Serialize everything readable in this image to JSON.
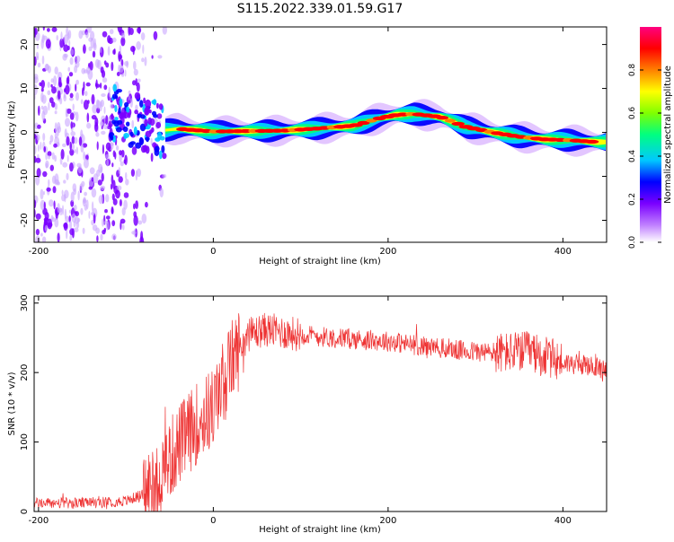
{
  "title": "S115.2022.339.01.59.G17",
  "chart_data": [
    {
      "type": "heatmap",
      "xlabel": "Height of straight line (km)",
      "ylabel": "Frequency (Hz)",
      "xlim": [
        -205,
        450
      ],
      "ylim": [
        -25,
        24
      ],
      "x_ticks": [
        -200,
        0,
        200,
        400
      ],
      "y_ticks": [
        -20,
        -10,
        0,
        10,
        20
      ],
      "colorbar": {
        "label": "Normalized spectral amplitude",
        "ticks": [
          0.0,
          0.2,
          0.4,
          0.6,
          0.8
        ],
        "range": [
          0,
          1
        ],
        "colormap": [
          "#ffffff",
          "#7a00ff",
          "#0000ff",
          "#00c8ff",
          "#00ff80",
          "#80ff00",
          "#ffff00",
          "#ff8000",
          "#ff0000",
          "#ff0080"
        ]
      },
      "ridge": {
        "x": [
          -55,
          -40,
          -20,
          0,
          40,
          80,
          120,
          160,
          190,
          210,
          230,
          260,
          290,
          320,
          350,
          380,
          410,
          440
        ],
        "frequency": [
          0.5,
          0.8,
          0.5,
          0.2,
          0.3,
          0.4,
          0.9,
          1.5,
          3.2,
          4.0,
          4.2,
          3.5,
          1.2,
          0.0,
          -1.0,
          -1.6,
          -1.8,
          -2.2
        ]
      },
      "noise_region": {
        "x_from": -205,
        "x_to": -55,
        "frequency_from": -25,
        "frequency_to": 24
      }
    },
    {
      "type": "line",
      "color": "#ee3333",
      "xlabel": "Height of straight line (km)",
      "ylabel": "SNR (10 * v/v)",
      "xlim": [
        -205,
        450
      ],
      "ylim": [
        0,
        310
      ],
      "x_ticks": [
        -200,
        0,
        200,
        400
      ],
      "y_ticks": [
        0,
        100,
        200,
        300
      ],
      "trend": {
        "x": [
          -205,
          -150,
          -100,
          -80,
          -60,
          -40,
          -20,
          0,
          20,
          40,
          60,
          80,
          120,
          160,
          200,
          240,
          280,
          320,
          360,
          400,
          450
        ],
        "y": [
          12,
          12,
          15,
          25,
          55,
          95,
          125,
          150,
          215,
          255,
          262,
          258,
          252,
          248,
          245,
          238,
          232,
          228,
          230,
          215,
          205
        ]
      }
    }
  ]
}
